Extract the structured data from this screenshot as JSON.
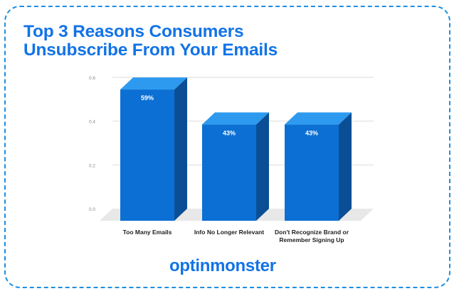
{
  "title": {
    "line1": "Top 3 Reasons Consumers",
    "line2": "Unsubscribe From Your Emails"
  },
  "chart_data": {
    "type": "bar",
    "title": "Top 3 Reasons Consumers Unsubscribe From Your Emails",
    "categories": [
      [
        "Too Many Emails"
      ],
      [
        "Info No Longer Relevant"
      ],
      [
        "Don't Recognize Brand or",
        "Remember Signing Up"
      ]
    ],
    "values": [
      0.59,
      0.43,
      0.43
    ],
    "data_labels": [
      "59%",
      "43%",
      "43%"
    ],
    "y_ticks": [
      "0.0",
      "0.2",
      "0.4",
      "0.6"
    ],
    "ylim": [
      0,
      0.6
    ],
    "grid": true,
    "style": "3d",
    "colors": {
      "front": "#0c6fd3",
      "side": "#0a4f96",
      "top": "#2d9af0",
      "grid": "#dddddd",
      "floor": "#e8e8e8",
      "tick": "#888888",
      "label": "#222222"
    }
  },
  "branding": {
    "logo_text": "optinmonster",
    "logo_color": "#1273e6",
    "frame_color": "#1e8fe0"
  }
}
